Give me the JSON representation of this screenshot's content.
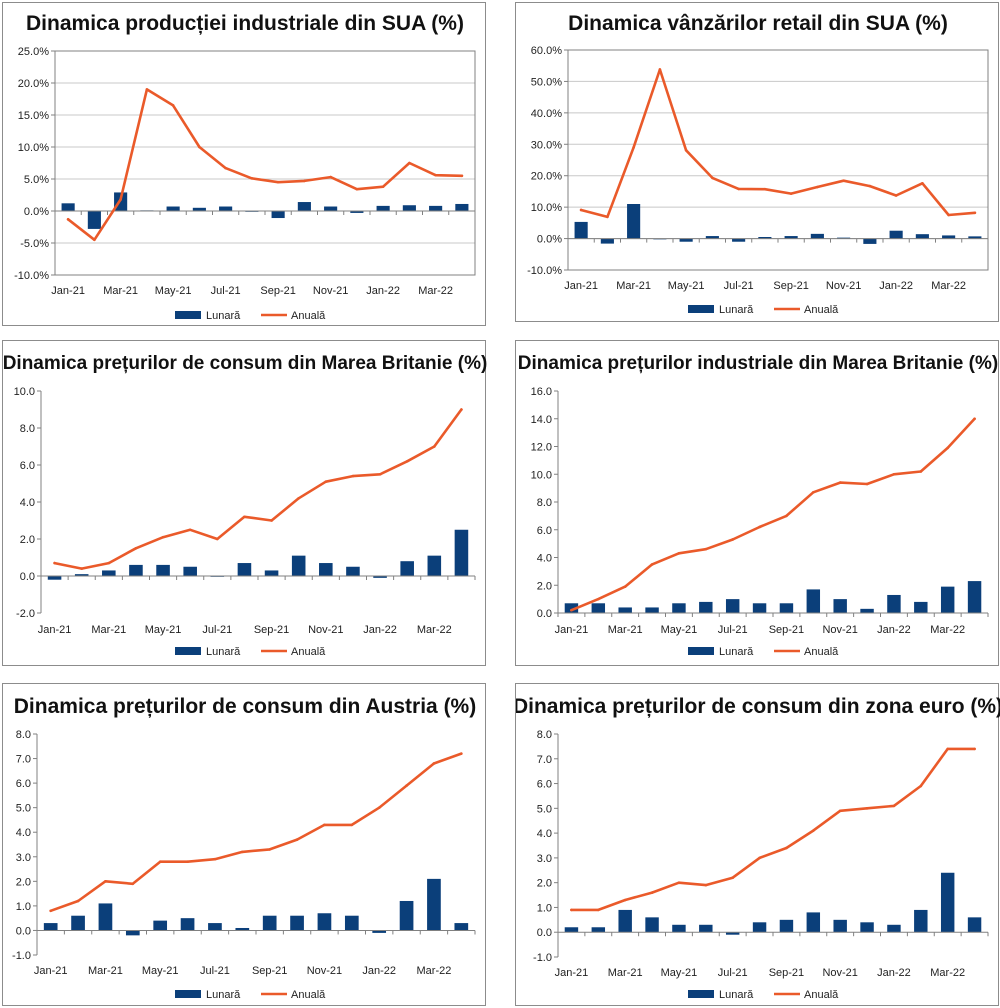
{
  "colors": {
    "monthly": "#0b3f7a",
    "annual": "#ea5a2a",
    "grid": "#c8c8c8",
    "axis": "#808080"
  },
  "chart_data": [
    {
      "type": "bar+line",
      "title": "Dinamica producției industriale din SUA (%)",
      "categories": [
        "Jan-21",
        "Feb-21",
        "Mar-21",
        "Apr-21",
        "May-21",
        "Jun-21",
        "Jul-21",
        "Aug-21",
        "Sep-21",
        "Oct-21",
        "Nov-21",
        "Dec-21",
        "Jan-22",
        "Feb-22",
        "Mar-22",
        "Apr-22"
      ],
      "x_tick_labels": [
        "Jan-21",
        "",
        "Mar-21",
        "",
        "May-21",
        "",
        "Jul-21",
        "",
        "Sep-21",
        "",
        "Nov-21",
        "",
        "Jan-22",
        "",
        "Mar-22",
        ""
      ],
      "y_tick_labels": [
        "-10.0%",
        "-5.0%",
        "0.0%",
        "5.0%",
        "10.0%",
        "15.0%",
        "20.0%",
        "25.0%"
      ],
      "ylim": [
        -10,
        25
      ],
      "ystep": 5,
      "decimals": 1,
      "percent": true,
      "grid": true,
      "series": [
        {
          "name": "Lunară",
          "kind": "bar",
          "values": [
            1.2,
            -2.8,
            2.9,
            0.1,
            0.7,
            0.5,
            0.7,
            -0.1,
            -1.1,
            1.4,
            0.7,
            -0.3,
            0.8,
            0.9,
            0.8,
            1.1
          ]
        },
        {
          "name": "Anuală",
          "kind": "line",
          "values": [
            -1.3,
            -4.5,
            1.8,
            19.0,
            16.5,
            10.0,
            6.7,
            5.1,
            4.5,
            4.7,
            5.3,
            3.4,
            3.8,
            7.5,
            5.6,
            5.5
          ]
        }
      ],
      "legend": {
        "position": "bottom",
        "labels": [
          "Lunară",
          "Anuală"
        ]
      }
    },
    {
      "type": "bar+line",
      "title": "Dinamica vânzărilor retail din SUA (%)",
      "categories": [
        "Jan-21",
        "Feb-21",
        "Mar-21",
        "Apr-21",
        "May-21",
        "Jun-21",
        "Jul-21",
        "Aug-21",
        "Sep-21",
        "Oct-21",
        "Nov-21",
        "Dec-21",
        "Jan-22",
        "Feb-22",
        "Mar-22",
        "Apr-22"
      ],
      "x_tick_labels": [
        "Jan-21",
        "",
        "Mar-21",
        "",
        "May-21",
        "",
        "Jul-21",
        "",
        "Sep-21",
        "",
        "Nov-21",
        "",
        "Jan-22",
        "",
        "Mar-22",
        ""
      ],
      "y_tick_labels": [
        "-10.0%",
        "0.0%",
        "10.0%",
        "20.0%",
        "30.0%",
        "40.0%",
        "50.0%",
        "60.0%"
      ],
      "ylim": [
        -10,
        60
      ],
      "ystep": 10,
      "decimals": 1,
      "percent": true,
      "grid": true,
      "series": [
        {
          "name": "Lunară",
          "kind": "bar",
          "values": [
            5.3,
            -1.6,
            11.0,
            0.0,
            -1.0,
            0.8,
            -1.0,
            0.5,
            0.8,
            1.5,
            0.3,
            -1.7,
            2.5,
            1.4,
            1.0,
            0.7
          ]
        },
        {
          "name": "Anuală",
          "kind": "line",
          "values": [
            9.1,
            6.9,
            29.0,
            53.8,
            28.1,
            19.3,
            15.8,
            15.7,
            14.3,
            16.4,
            18.4,
            16.7,
            13.7,
            17.6,
            7.5,
            8.2
          ]
        }
      ],
      "legend": {
        "position": "bottom",
        "labels": [
          "Lunară",
          "Anuală"
        ]
      }
    },
    {
      "type": "bar+line",
      "title": "Dinamica prețurilor de consum din Marea Britanie (%)",
      "categories": [
        "Jan-21",
        "Feb-21",
        "Mar-21",
        "Apr-21",
        "May-21",
        "Jun-21",
        "Jul-21",
        "Aug-21",
        "Sep-21",
        "Oct-21",
        "Nov-21",
        "Dec-21",
        "Jan-22",
        "Feb-22",
        "Mar-22",
        "Apr-22"
      ],
      "x_tick_labels": [
        "Jan-21",
        "",
        "Mar-21",
        "",
        "May-21",
        "",
        "Jul-21",
        "",
        "Sep-21",
        "",
        "Nov-21",
        "",
        "Jan-22",
        "",
        "Mar-22",
        ""
      ],
      "y_tick_labels": [
        "-2.0",
        "0.0",
        "2.0",
        "4.0",
        "6.0",
        "8.0",
        "10.0"
      ],
      "ylim": [
        -2,
        10
      ],
      "ystep": 2,
      "decimals": 1,
      "percent": false,
      "grid": false,
      "series": [
        {
          "name": "Lunară",
          "kind": "bar",
          "values": [
            -0.2,
            0.1,
            0.3,
            0.6,
            0.6,
            0.5,
            0.0,
            0.7,
            0.3,
            1.1,
            0.7,
            0.5,
            -0.1,
            0.8,
            1.1,
            2.5
          ]
        },
        {
          "name": "Anuală",
          "kind": "line",
          "values": [
            0.7,
            0.4,
            0.7,
            1.5,
            2.1,
            2.5,
            2.0,
            3.2,
            3.0,
            4.2,
            5.1,
            5.4,
            5.5,
            6.2,
            7.0,
            9.0
          ]
        }
      ],
      "legend": {
        "position": "bottom",
        "labels": [
          "Lunară",
          "Anuală"
        ]
      }
    },
    {
      "type": "bar+line",
      "title": "Dinamica prețurilor industriale din Marea Britanie (%)",
      "categories": [
        "Jan-21",
        "Feb-21",
        "Mar-21",
        "Apr-21",
        "May-21",
        "Jun-21",
        "Jul-21",
        "Aug-21",
        "Sep-21",
        "Oct-21",
        "Nov-21",
        "Dec-21",
        "Jan-22",
        "Feb-22",
        "Mar-22",
        "Apr-22"
      ],
      "x_tick_labels": [
        "Jan-21",
        "",
        "Mar-21",
        "",
        "May-21",
        "",
        "Jul-21",
        "",
        "Sep-21",
        "",
        "Nov-21",
        "",
        "Jan-22",
        "",
        "Mar-22",
        ""
      ],
      "y_tick_labels": [
        "0.0",
        "2.0",
        "4.0",
        "6.0",
        "8.0",
        "10.0",
        "12.0",
        "14.0",
        "16.0"
      ],
      "ylim": [
        0,
        16
      ],
      "ystep": 2,
      "decimals": 1,
      "percent": false,
      "grid": false,
      "series": [
        {
          "name": "Lunară",
          "kind": "bar",
          "values": [
            0.7,
            0.7,
            0.4,
            0.4,
            0.7,
            0.8,
            1.0,
            0.7,
            0.7,
            1.7,
            1.0,
            0.3,
            1.3,
            0.8,
            1.9,
            2.3
          ]
        },
        {
          "name": "Anuală",
          "kind": "line",
          "values": [
            0.2,
            1.0,
            1.9,
            3.5,
            4.3,
            4.6,
            5.3,
            6.2,
            7.0,
            8.7,
            9.4,
            9.3,
            10.0,
            10.2,
            11.9,
            14.0
          ]
        }
      ],
      "legend": {
        "position": "bottom",
        "labels": [
          "Lunară",
          "Anuală"
        ]
      }
    },
    {
      "type": "bar+line",
      "title": "Dinamica prețurilor de consum din Austria (%)",
      "categories": [
        "Jan-21",
        "Feb-21",
        "Mar-21",
        "Apr-21",
        "May-21",
        "Jun-21",
        "Jul-21",
        "Aug-21",
        "Sep-21",
        "Oct-21",
        "Nov-21",
        "Dec-21",
        "Jan-22",
        "Feb-22",
        "Mar-22",
        "Apr-22"
      ],
      "x_tick_labels": [
        "Jan-21",
        "",
        "Mar-21",
        "",
        "May-21",
        "",
        "Jul-21",
        "",
        "Sep-21",
        "",
        "Nov-21",
        "",
        "Jan-22",
        "",
        "Mar-22",
        ""
      ],
      "y_tick_labels": [
        "-1.0",
        "0.0",
        "1.0",
        "2.0",
        "3.0",
        "4.0",
        "5.0",
        "6.0",
        "7.0",
        "8.0"
      ],
      "ylim": [
        -1,
        8
      ],
      "ystep": 1,
      "decimals": 1,
      "percent": false,
      "grid": false,
      "series": [
        {
          "name": "Lunară",
          "kind": "bar",
          "values": [
            0.3,
            0.6,
            1.1,
            -0.2,
            0.4,
            0.5,
            0.3,
            0.1,
            0.6,
            0.6,
            0.7,
            0.6,
            -0.1,
            1.2,
            2.1,
            0.3
          ]
        },
        {
          "name": "Anuală",
          "kind": "line",
          "values": [
            0.8,
            1.2,
            2.0,
            1.9,
            2.8,
            2.8,
            2.9,
            3.2,
            3.3,
            3.7,
            4.3,
            4.3,
            5.0,
            5.9,
            6.8,
            7.2
          ]
        }
      ],
      "legend": {
        "position": "bottom",
        "labels": [
          "Lunară",
          "Anuală"
        ]
      }
    },
    {
      "type": "bar+line",
      "title": "Dinamica prețurilor de consum din zona euro (%)",
      "categories": [
        "Jan-21",
        "Feb-21",
        "Mar-21",
        "Apr-21",
        "May-21",
        "Jun-21",
        "Jul-21",
        "Aug-21",
        "Sep-21",
        "Oct-21",
        "Nov-21",
        "Dec-21",
        "Jan-22",
        "Feb-22",
        "Mar-22",
        "Apr-22"
      ],
      "x_tick_labels": [
        "Jan-21",
        "",
        "Mar-21",
        "",
        "May-21",
        "",
        "Jul-21",
        "",
        "Sep-21",
        "",
        "Nov-21",
        "",
        "Jan-22",
        "",
        "Mar-22",
        ""
      ],
      "y_tick_labels": [
        "-1.0",
        "0.0",
        "1.0",
        "2.0",
        "3.0",
        "4.0",
        "5.0",
        "6.0",
        "7.0",
        "8.0"
      ],
      "ylim": [
        -1,
        8
      ],
      "ystep": 1,
      "decimals": 1,
      "percent": false,
      "grid": false,
      "series": [
        {
          "name": "Lunară",
          "kind": "bar",
          "values": [
            0.2,
            0.2,
            0.9,
            0.6,
            0.3,
            0.3,
            -0.1,
            0.4,
            0.5,
            0.8,
            0.5,
            0.4,
            0.3,
            0.9,
            2.4,
            0.6
          ]
        },
        {
          "name": "Anuală",
          "kind": "line",
          "values": [
            0.9,
            0.9,
            1.3,
            1.6,
            2.0,
            1.9,
            2.2,
            3.0,
            3.4,
            4.1,
            4.9,
            5.0,
            5.1,
            5.9,
            7.4,
            7.4
          ]
        }
      ],
      "legend": {
        "position": "bottom",
        "labels": [
          "Lunară",
          "Anuală"
        ]
      }
    }
  ]
}
